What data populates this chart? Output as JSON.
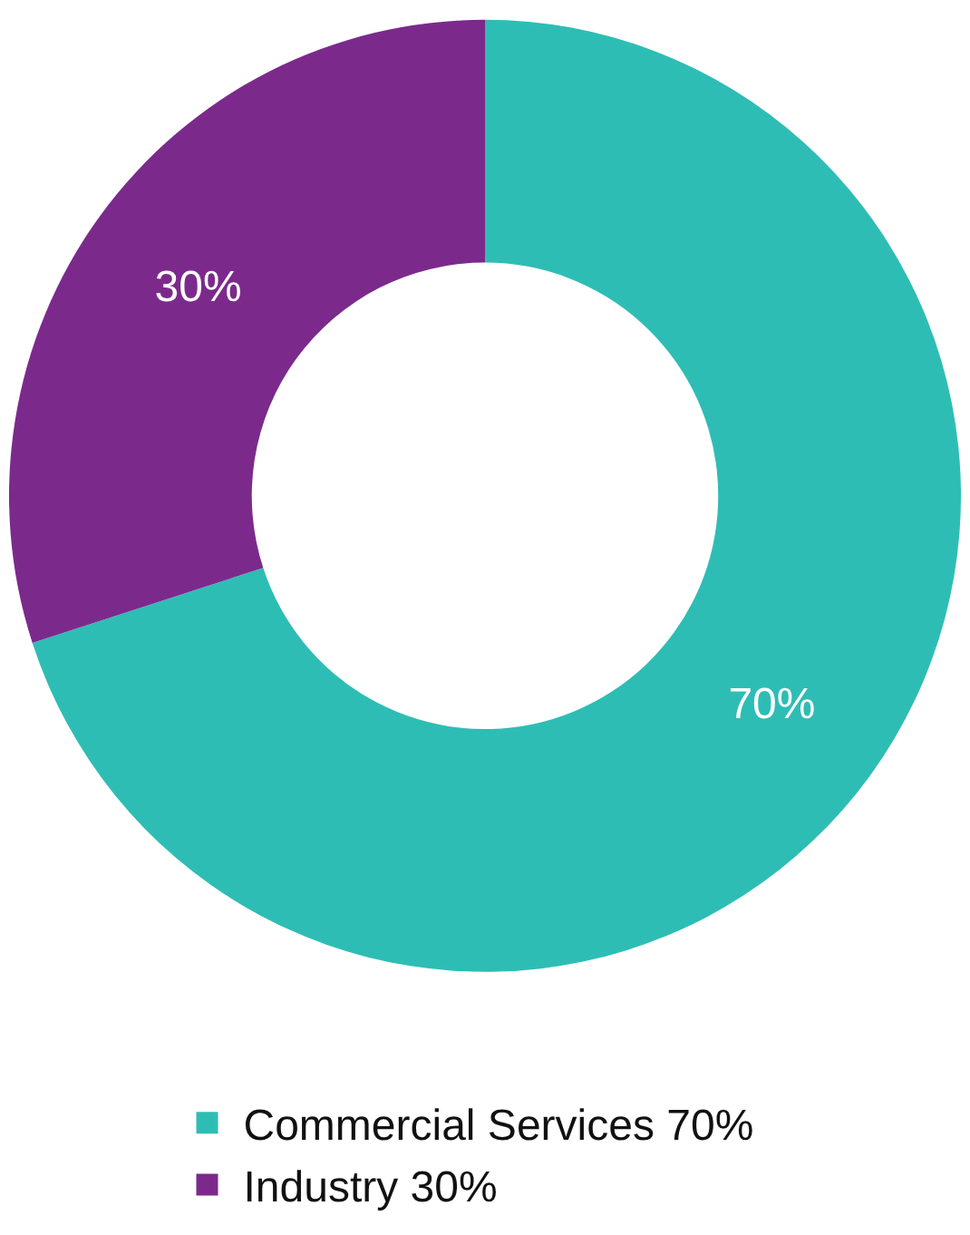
{
  "chart_data": {
    "type": "donut",
    "categories": [
      "Commercial Services 70%",
      "Industry 30%"
    ],
    "values": [
      70,
      30
    ],
    "value_labels": [
      "70%",
      "30%"
    ],
    "colors": [
      "#2ebdb4",
      "#7b2a8c"
    ],
    "legend": "bottom"
  }
}
